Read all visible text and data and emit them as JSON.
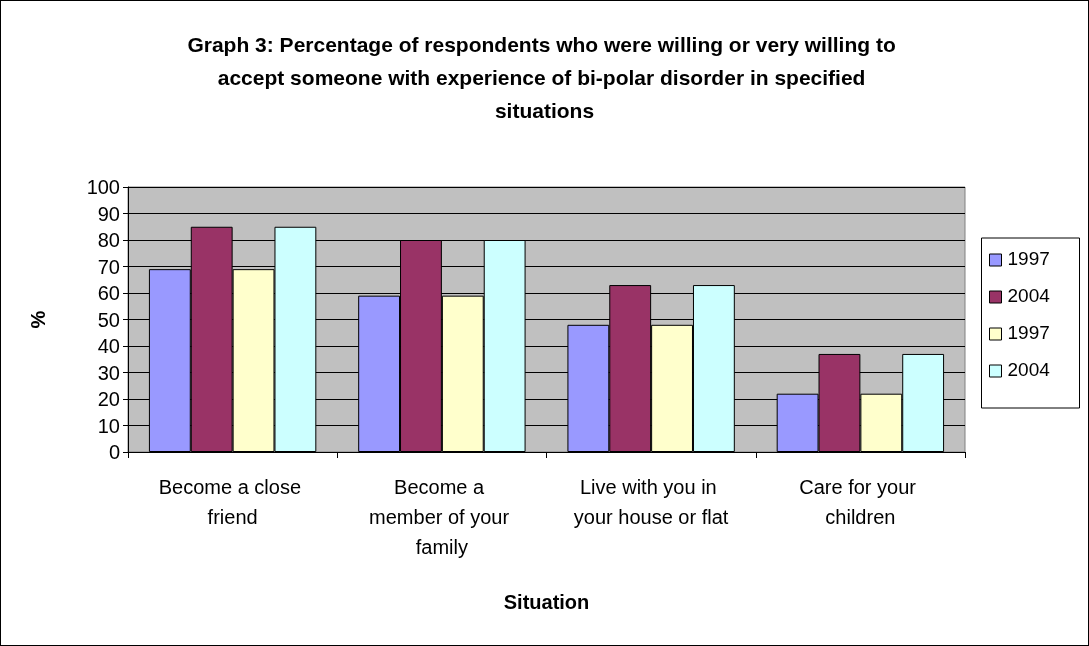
{
  "chart_data": {
    "type": "bar",
    "title": "Graph 3: Percentage of respondents who were willing or very willing to accept someone with experience of bi-polar disorder in specified situations",
    "xlabel": "Situation",
    "ylabel": "%",
    "categories": [
      "Become a close friend",
      "Become a member of your family",
      "Live with you in your house or flat",
      "Care for your children"
    ],
    "series": [
      {
        "name": "1997",
        "color": "#9999ff",
        "values": [
          69,
          59,
          48,
          22
        ]
      },
      {
        "name": "2004",
        "color": "#993366",
        "values": [
          85,
          80,
          63,
          37
        ]
      },
      {
        "name": "1997",
        "color": "#ffffcc",
        "values": [
          69,
          59,
          48,
          22
        ]
      },
      {
        "name": "2004",
        "color": "#ccffff",
        "values": [
          85,
          80,
          63,
          37
        ]
      }
    ],
    "ylim": [
      0,
      100
    ],
    "yticks": [
      0,
      10,
      20,
      30,
      40,
      50,
      60,
      70,
      80,
      90,
      100
    ],
    "grid": "y",
    "legend": "right"
  }
}
